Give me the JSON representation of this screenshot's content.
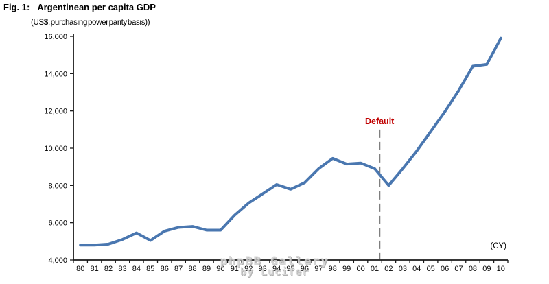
{
  "figure": {
    "label": "Fig. 1:",
    "title": "Argentinean per capita GDP",
    "subtitle": "(US$, purchasing power parity basis))"
  },
  "chart_data": {
    "type": "line",
    "title": "Argentinean per capita GDP",
    "subtitle": "(US$, purchasing power parity basis))",
    "x_unit_label": "(CY)",
    "categories": [
      "80",
      "81",
      "82",
      "83",
      "84",
      "85",
      "86",
      "87",
      "88",
      "89",
      "90",
      "91",
      "92",
      "93",
      "94",
      "95",
      "96",
      "97",
      "98",
      "99",
      "00",
      "01",
      "02",
      "03",
      "04",
      "05",
      "06",
      "07",
      "08",
      "09",
      "10"
    ],
    "series": [
      {
        "color": "#4A77B0",
        "values": [
          4800,
          4800,
          4850,
          5100,
          5450,
          5050,
          5550,
          5750,
          5800,
          5600,
          5600,
          6400,
          7050,
          7550,
          8050,
          7800,
          8150,
          8900,
          9450,
          9150,
          9200,
          8900,
          8000,
          8900,
          9850,
          10900,
          11950,
          13100,
          14400,
          14500,
          15900
        ]
      }
    ],
    "ylim": [
      4000,
      16000
    ],
    "y_tick_step": 2000,
    "y_tick_labels": [
      "4,000",
      "6,000",
      "8,000",
      "10,000",
      "12,000",
      "14,000",
      "16,000"
    ],
    "grid": "off",
    "legend": "none",
    "annotation": {
      "label": "Default",
      "text_color": "#C00000",
      "line_color": "#7F7F7F",
      "category_index": 21.35,
      "line_top_value": 11000
    }
  },
  "watermark": {
    "line1": "phpBB Gallery",
    "line2": "by Lucifer"
  },
  "colors": {
    "background": "#FFFFFF",
    "text": "#000000",
    "axis": "#1a1a1a",
    "line": "#4A77B0",
    "annotation_text": "#C00000",
    "dashed_line": "#7F7F7F",
    "watermark": "#D2D2D2"
  }
}
